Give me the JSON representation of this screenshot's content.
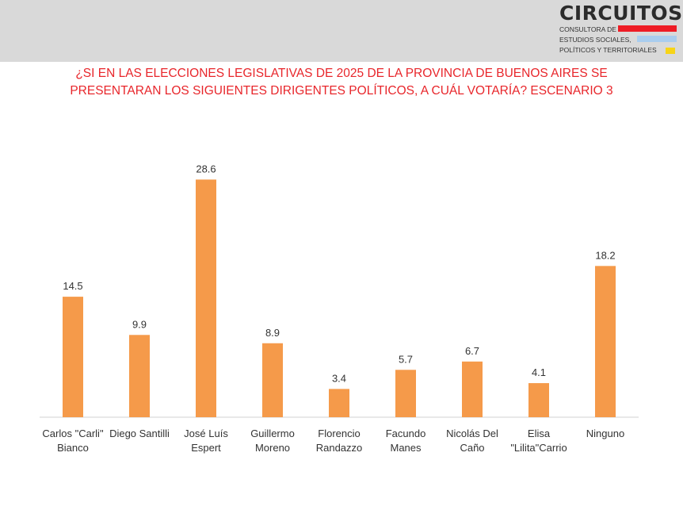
{
  "brand": {
    "name": "CIRCUITOS",
    "line1": "CONSULTORA DE",
    "line2": "ESTUDIOS SOCIALES,",
    "line3": "POLÍTICOS Y TERRITORIALES",
    "colors": {
      "red": "#ee1c25",
      "blue": "#a9cdee",
      "yellow": "#f7d417"
    }
  },
  "chart_data": {
    "type": "bar",
    "title_line1": "¿SI EN LAS ELECCIONES LEGISLATIVAS DE 2025 DE LA PROVINCIA DE BUENOS AIRES SE",
    "title_line2": "PRESENTARAN LOS SIGUIENTES DIRIGENTES POLÍTICOS, A CUÁL VOTARÍA? ESCENARIO 3",
    "categories": [
      [
        "Carlos \"Carli\"",
        "Bianco"
      ],
      [
        "Diego Santilli"
      ],
      [
        "José Luís",
        "Espert"
      ],
      [
        "Guillermo",
        "Moreno"
      ],
      [
        "Florencio",
        "Randazzo"
      ],
      [
        "Facundo",
        "Manes"
      ],
      [
        "Nicolás Del",
        "Caño"
      ],
      [
        "Elisa",
        "\"Lilita\"Carrio"
      ],
      [
        "Ninguno"
      ]
    ],
    "values": [
      14.5,
      9.9,
      28.6,
      8.9,
      3.4,
      5.7,
      6.7,
      4.1,
      18.2
    ],
    "value_labels": [
      "14.5",
      "9.9",
      "28.6",
      "8.9",
      "3.4",
      "5.7",
      "6.7",
      "4.1",
      "18.2"
    ],
    "bar_color": "#f59a4a",
    "ylim": [
      0,
      31.5
    ],
    "grid": false,
    "xlabel": "",
    "ylabel": ""
  }
}
